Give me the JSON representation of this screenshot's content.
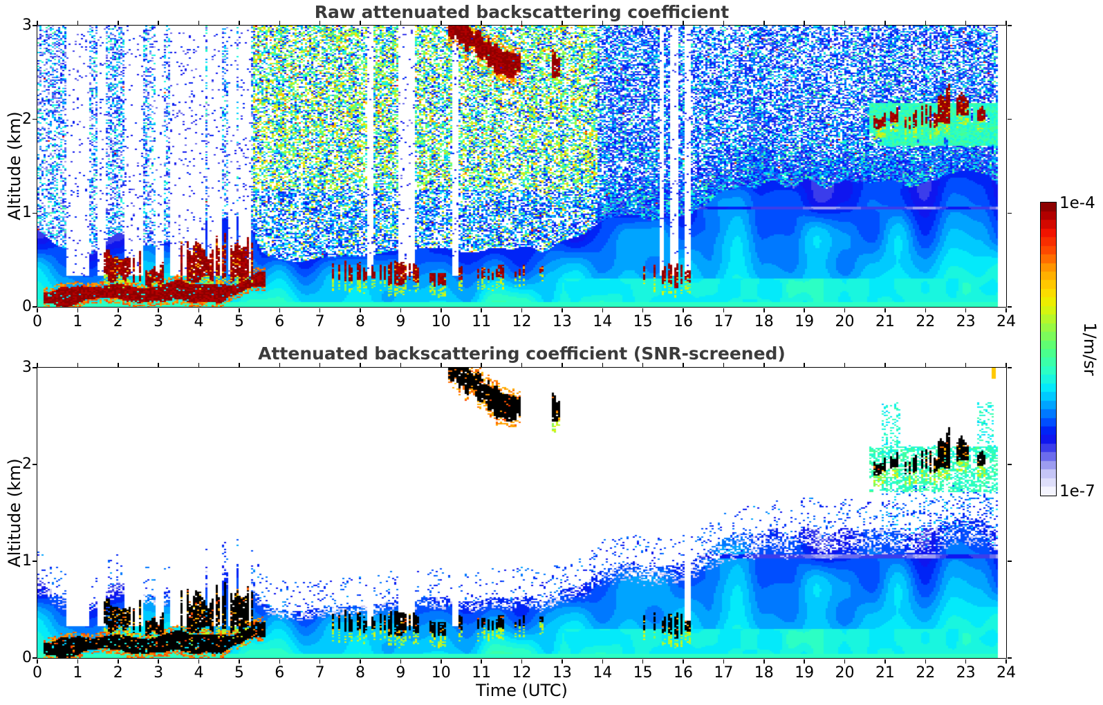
{
  "figure": {
    "background": "#ffffff",
    "title_color": "#3b3b3b"
  },
  "chart_data": {
    "type": "heatmap",
    "panels": [
      {
        "id": "raw",
        "title": "Raw attenuated backscattering coefficient",
        "screened": false
      },
      {
        "id": "screened",
        "title": "Attenuated backscattering coefficient (SNR-screened)",
        "screened": true
      }
    ],
    "x_axis": {
      "label": "Time (UTC)",
      "min": 0,
      "max": 24,
      "ticks": [
        0,
        1,
        2,
        3,
        4,
        5,
        6,
        7,
        8,
        9,
        10,
        11,
        12,
        13,
        14,
        15,
        16,
        17,
        18,
        19,
        20,
        21,
        22,
        23,
        24
      ]
    },
    "y_axis": {
      "label": "Altitude (km)",
      "min": 0,
      "max": 3,
      "ticks": [
        0,
        1,
        2,
        3
      ]
    },
    "colorbar": {
      "unit": "1/m/sr",
      "top_label": "1e-4",
      "bottom_label": "1e-7",
      "scale": "log10",
      "vmin": 1e-07,
      "vmax": 0.0001,
      "levels": 34,
      "stops": [
        [
          0.0,
          "#ffffff"
        ],
        [
          0.03,
          "#e8e8fc"
        ],
        [
          0.07,
          "#c8c8f6"
        ],
        [
          0.11,
          "#9191ef"
        ],
        [
          0.15,
          "#4b4bea"
        ],
        [
          0.2,
          "#0008f0"
        ],
        [
          0.25,
          "#0050ff"
        ],
        [
          0.31,
          "#00a8ff"
        ],
        [
          0.36,
          "#00e8ff"
        ],
        [
          0.42,
          "#2affc8"
        ],
        [
          0.5,
          "#52ff7e"
        ],
        [
          0.58,
          "#9ef83e"
        ],
        [
          0.65,
          "#e8f400"
        ],
        [
          0.7,
          "#ffd800"
        ],
        [
          0.77,
          "#ffa000"
        ],
        [
          0.83,
          "#ff5000"
        ],
        [
          0.9,
          "#f01000"
        ],
        [
          0.95,
          "#b80000"
        ],
        [
          1.0,
          "#7a0000"
        ]
      ]
    },
    "data_end_hour": 23.77,
    "features": {
      "boundary_layer": {
        "top_km": [
          [
            0,
            0.8
          ],
          [
            0.5,
            0.62
          ],
          [
            1,
            0.55
          ],
          [
            1.5,
            0.6
          ],
          [
            2,
            0.78
          ],
          [
            2.5,
            0.7
          ],
          [
            3,
            0.62
          ],
          [
            3.5,
            0.75
          ],
          [
            4,
            0.85
          ],
          [
            4.5,
            0.9
          ],
          [
            5,
            0.95
          ],
          [
            5.3,
            0.8
          ],
          [
            5.6,
            0.55
          ],
          [
            6,
            0.52
          ],
          [
            6.5,
            0.48
          ],
          [
            7,
            0.5
          ],
          [
            8,
            0.55
          ],
          [
            9,
            0.6
          ],
          [
            10,
            0.62
          ],
          [
            11,
            0.6
          ],
          [
            12,
            0.62
          ],
          [
            12.5,
            0.58
          ],
          [
            13,
            0.68
          ],
          [
            13.5,
            0.75
          ],
          [
            14,
            0.9
          ],
          [
            14.5,
            0.95
          ],
          [
            15,
            0.95
          ],
          [
            15.5,
            1.0
          ],
          [
            16,
            1.0
          ],
          [
            16.5,
            1.05
          ],
          [
            17,
            1.2
          ],
          [
            17.5,
            1.3
          ],
          [
            18,
            1.35
          ],
          [
            18.5,
            1.3
          ],
          [
            19,
            1.35
          ],
          [
            19.5,
            1.3
          ],
          [
            20,
            1.32
          ],
          [
            20.5,
            1.35
          ],
          [
            21,
            1.38
          ],
          [
            21.5,
            1.3
          ],
          [
            22,
            1.35
          ],
          [
            22.5,
            1.35
          ],
          [
            23,
            1.4
          ],
          [
            23.5,
            1.35
          ],
          [
            23.77,
            1.3
          ]
        ],
        "artifact_line_km": 1.05
      },
      "strong_surface_layer": {
        "t0": 0.15,
        "t1": 5.65,
        "half_thickness_km": 0.08,
        "center_km": [
          [
            0.15,
            0.1
          ],
          [
            1,
            0.13
          ],
          [
            2,
            0.17
          ],
          [
            2.5,
            0.14
          ],
          [
            3,
            0.15
          ],
          [
            3.5,
            0.18
          ],
          [
            4,
            0.15
          ],
          [
            4.5,
            0.13
          ],
          [
            5,
            0.2
          ],
          [
            5.4,
            0.28
          ],
          [
            5.65,
            0.3
          ]
        ]
      },
      "cloud_blobs": [
        {
          "t0": 1.62,
          "t1": 2.55,
          "z0": 0.25,
          "z1": 0.72,
          "d": 0.75
        },
        {
          "t0": 2.6,
          "t1": 3.15,
          "z0": 0.2,
          "z1": 0.5,
          "d": 0.6
        },
        {
          "t0": 3.55,
          "t1": 4.6,
          "z0": 0.2,
          "z1": 0.78,
          "d": 0.75
        },
        {
          "t0": 4.65,
          "t1": 5.4,
          "z0": 0.22,
          "z1": 0.85,
          "d": 0.7
        },
        {
          "t0": 7.3,
          "t1": 8.65,
          "z0": 0.25,
          "z1": 0.5,
          "d": 0.5
        },
        {
          "t0": 8.7,
          "t1": 9.55,
          "z0": 0.22,
          "z1": 0.55,
          "d": 0.7
        },
        {
          "t0": 9.6,
          "t1": 10.1,
          "z0": 0.2,
          "z1": 0.45,
          "d": 0.5
        },
        {
          "t0": 10.4,
          "t1": 10.75,
          "z0": 0.25,
          "z1": 0.45,
          "d": 0.45
        },
        {
          "t0": 10.9,
          "t1": 11.65,
          "z0": 0.28,
          "z1": 0.48,
          "d": 0.55
        },
        {
          "t0": 11.7,
          "t1": 12.1,
          "z0": 0.3,
          "z1": 0.45,
          "d": 0.35
        },
        {
          "t0": 12.3,
          "t1": 12.6,
          "z0": 0.35,
          "z1": 0.5,
          "d": 0.3
        },
        {
          "t0": 13.9,
          "t1": 14.15,
          "z0": 0.45,
          "z1": 0.65,
          "d": 0.25
        },
        {
          "t0": 14.85,
          "t1": 15.3,
          "z0": 0.25,
          "z1": 0.5,
          "d": 0.35
        },
        {
          "t0": 15.45,
          "t1": 16.3,
          "z0": 0.2,
          "z1": 0.55,
          "d": 0.5
        }
      ],
      "descending_cloud": {
        "path": [
          [
            10.15,
            3.02
          ],
          [
            10.45,
            2.95
          ],
          [
            10.7,
            2.88
          ],
          [
            10.95,
            2.8
          ],
          [
            11.2,
            2.7
          ],
          [
            11.45,
            2.62
          ],
          [
            11.75,
            2.57
          ],
          [
            11.95,
            2.6
          ]
        ],
        "half_thickness_km": 0.1,
        "d": 0.9
      },
      "detached_blob": {
        "t0": 12.75,
        "t1": 12.95,
        "z0": 2.42,
        "z1": 2.78,
        "d": 0.8
      },
      "evening_blobs": [
        {
          "t0": 20.72,
          "t1": 21.05,
          "z0": 1.88,
          "z1": 2.1,
          "d": 0.8
        },
        {
          "t0": 21.05,
          "t1": 21.42,
          "z0": 1.9,
          "z1": 2.18,
          "d": 0.7
        },
        {
          "t0": 21.5,
          "t1": 21.8,
          "z0": 1.88,
          "z1": 2.12,
          "d": 0.6
        },
        {
          "t0": 21.85,
          "t1": 22.3,
          "z0": 1.9,
          "z1": 2.2,
          "d": 0.7
        },
        {
          "t0": 22.32,
          "t1": 22.62,
          "z0": 1.95,
          "z1": 2.4,
          "d": 0.75
        },
        {
          "t0": 22.7,
          "t1": 23.12,
          "z0": 2.0,
          "z1": 2.35,
          "d": 0.75
        },
        {
          "t0": 23.25,
          "t1": 23.5,
          "z0": 1.95,
          "z1": 2.18,
          "d": 0.5
        }
      ],
      "evening_band": {
        "t0": 20.6,
        "t1": 23.77,
        "z0": 1.78,
        "z1": 2.08
      },
      "attenuation_gaps": [
        [
          0.72,
          1.32,
          1
        ],
        [
          1.48,
          1.72,
          1
        ],
        [
          2.12,
          2.6,
          1
        ],
        [
          2.95,
          3.12,
          1
        ],
        [
          3.25,
          3.6,
          1
        ],
        [
          3.68,
          4.12,
          1
        ],
        [
          4.18,
          4.55,
          1
        ],
        [
          4.72,
          4.95,
          1
        ],
        [
          5.02,
          5.28,
          1
        ],
        [
          8.15,
          8.32,
          1
        ],
        [
          8.95,
          9.35,
          1
        ],
        [
          10.28,
          10.45,
          1
        ],
        [
          15.38,
          15.52,
          0
        ],
        [
          15.72,
          15.86,
          0
        ],
        [
          16.02,
          16.2,
          1
        ]
      ],
      "noise_zones": {
        "left_end": 5.35,
        "mid_end": 13.9
      },
      "specks": [
        {
          "t": 2.52,
          "z": 2.56
        },
        {
          "t": 23.7,
          "z": 2.95
        }
      ]
    }
  }
}
